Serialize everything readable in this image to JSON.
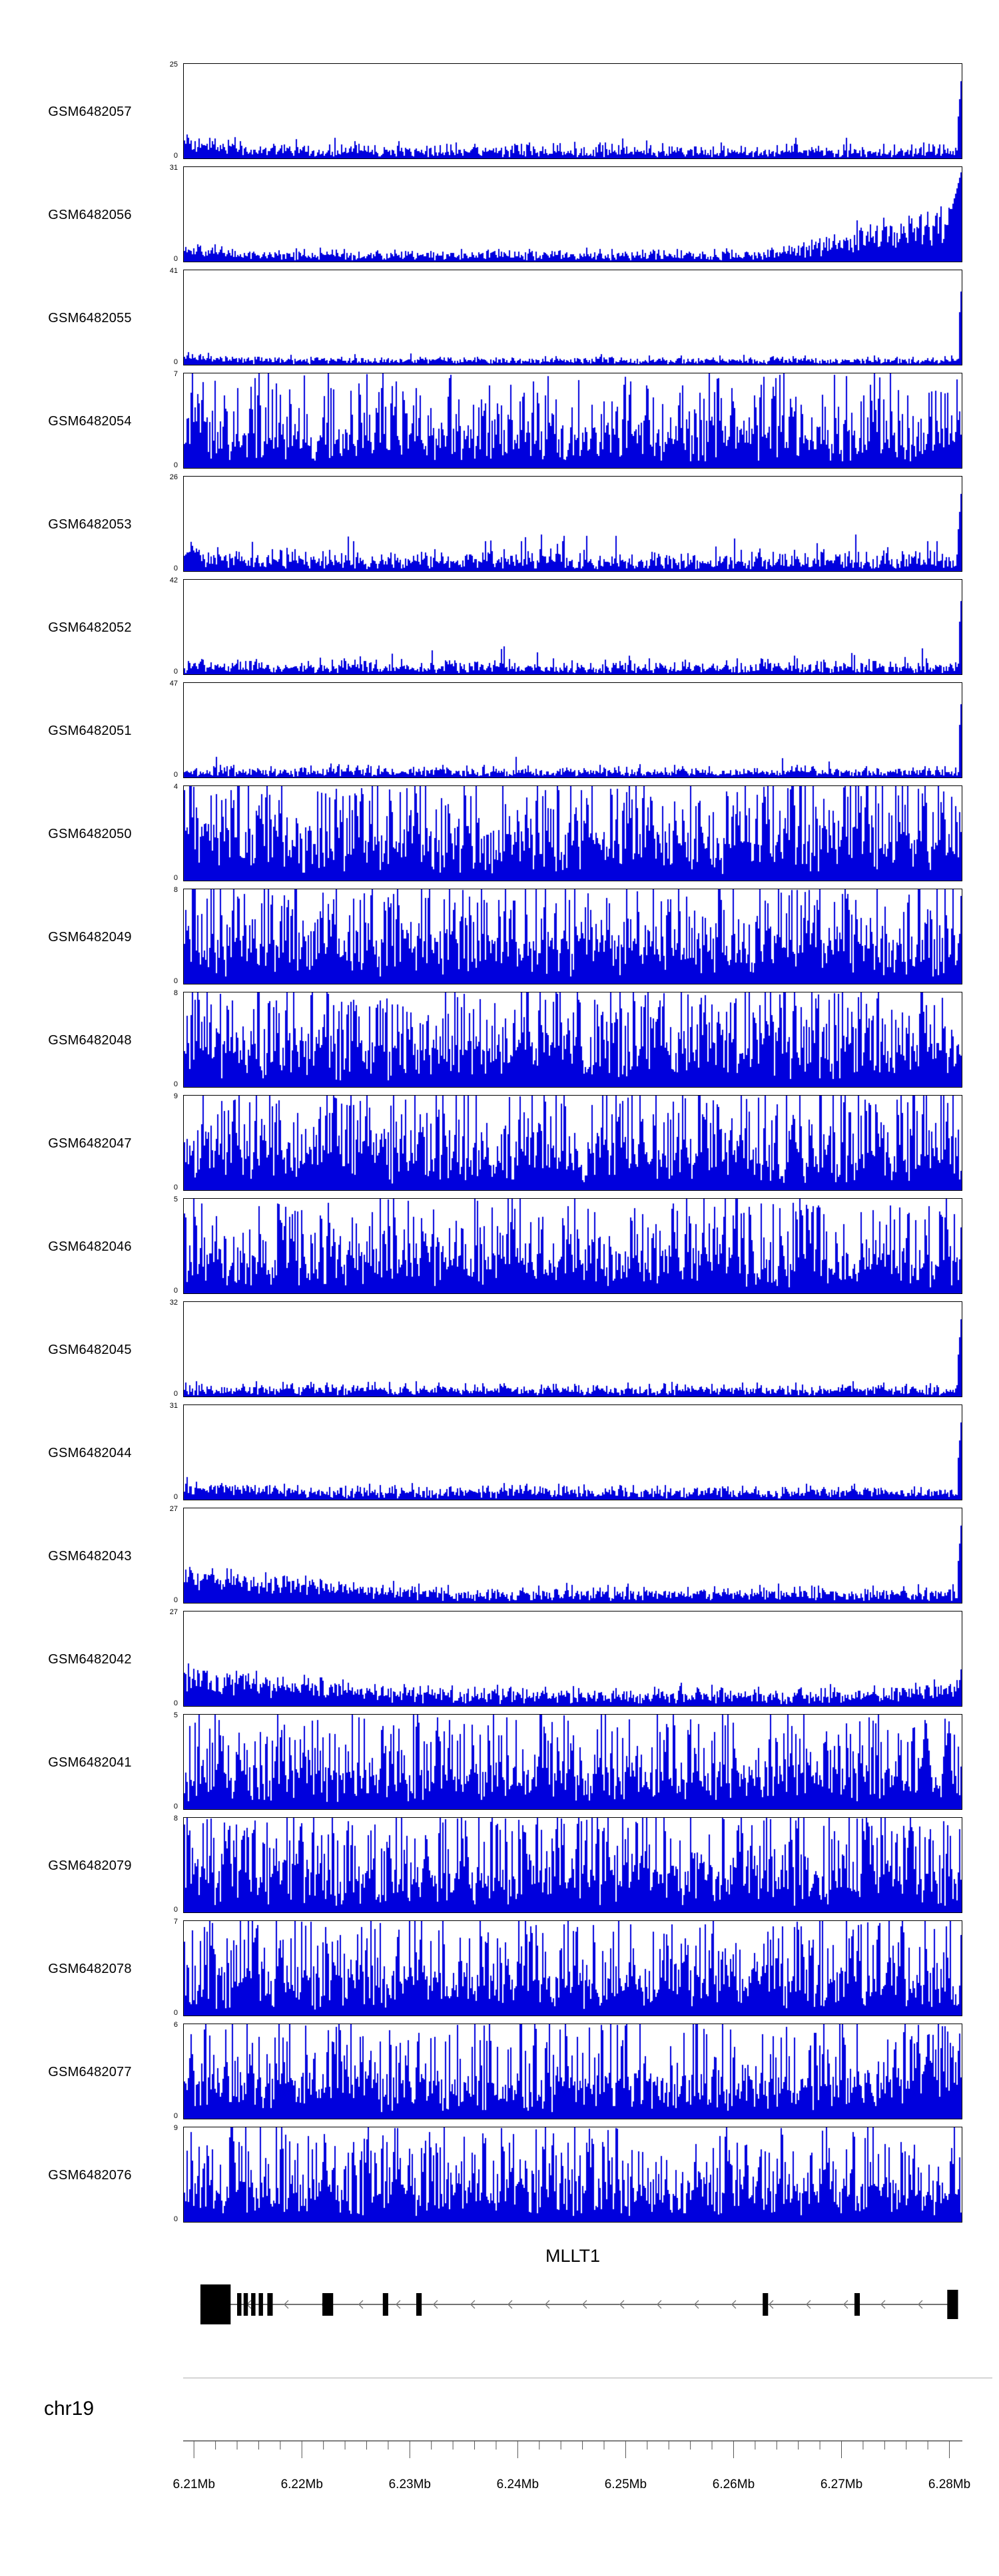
{
  "colors": {
    "coverage": "#0000dd",
    "exon": "#000000",
    "axis_line": "#333333",
    "tick": "#555555",
    "intron_line": "#444444",
    "arrow": "#777777"
  },
  "chart_data": {
    "type": "area",
    "description": "Genome-browser read-coverage (pileup) tracks for 21 GEO samples over the MLLT1 locus on chromosome 19",
    "x_axis": {
      "chromosome": "chr19",
      "range_mb": [
        6.209,
        6.2812
      ],
      "tick_positions_mb": [
        6.21,
        6.22,
        6.23,
        6.24,
        6.25,
        6.26,
        6.27,
        6.28
      ],
      "tick_labels": [
        "6.21Mb",
        "6.22Mb",
        "6.23Mb",
        "6.24Mb",
        "6.25Mb",
        "6.26Mb",
        "6.27Mb",
        "6.28Mb"
      ],
      "minor_tick_step_mb": 0.002
    },
    "tracks": [
      {
        "name": "GSM6482057",
        "ymin": 0,
        "ymax": 25,
        "pattern": "low flat coverage; sharp full-height spike at right edge",
        "profile": {
          "base": 0.05,
          "var": 0.06,
          "spikeProb": 0.03,
          "spikeMax": 0.22,
          "leftElev": 0.1,
          "leftWidth": 0.12,
          "rightSpike": 1,
          "rightSpikeWidth": 0.006
        }
      },
      {
        "name": "GSM6482056",
        "ymin": 0,
        "ymax": 31,
        "pattern": "low coverage ramping up over right quarter; tall spike at right edge",
        "profile": {
          "base": 0.05,
          "var": 0.05,
          "spikeProb": 0.02,
          "spikeMax": 0.15,
          "leftElev": 0.06,
          "leftWidth": 0.1,
          "rampStart": 0.75,
          "rampHeight": 0.5,
          "rightSpike": 1,
          "rightSpikeWidth": 0.02
        }
      },
      {
        "name": "GSM6482055",
        "ymin": 0,
        "ymax": 41,
        "pattern": "very low flat coverage; sharp spike at right edge",
        "profile": {
          "base": 0.035,
          "var": 0.03,
          "spikeProb": 0.015,
          "spikeMax": 0.12,
          "leftElev": 0.05,
          "leftWidth": 0.08,
          "rightSpike": 1,
          "rightSpikeWidth": 0.005
        }
      },
      {
        "name": "GSM6482054",
        "ymin": 0,
        "ymax": 7,
        "pattern": "dense spiky coverage across entire region",
        "profile": {
          "base": 0.22,
          "var": 0.5,
          "spikeProb": 0.1,
          "spikeMax": 1.0
        }
      },
      {
        "name": "GSM6482053",
        "ymin": 0,
        "ymax": 26,
        "pattern": "low coverage with scattered peaks; spike at right edge",
        "profile": {
          "base": 0.07,
          "var": 0.09,
          "spikeProb": 0.05,
          "spikeMax": 0.4,
          "leftElev": 0.08,
          "leftWidth": 0.1,
          "rightSpike": 1,
          "rightSpikeWidth": 0.006
        }
      },
      {
        "name": "GSM6482052",
        "ymin": 0,
        "ymax": 42,
        "pattern": "low flat coverage with occasional peaks; spike at right edge",
        "profile": {
          "base": 0.05,
          "var": 0.06,
          "spikeProb": 0.03,
          "spikeMax": 0.3,
          "rightSpike": 1,
          "rightSpikeWidth": 0.005
        }
      },
      {
        "name": "GSM6482051",
        "ymin": 0,
        "ymax": 47,
        "pattern": "low flat coverage; spike at right edge",
        "profile": {
          "base": 0.04,
          "var": 0.05,
          "spikeProb": 0.02,
          "spikeMax": 0.22,
          "rightSpike": 1,
          "rightSpikeWidth": 0.005
        }
      },
      {
        "name": "GSM6482050",
        "ymin": 0,
        "ymax": 4,
        "pattern": "dense tall spiky coverage across entire region",
        "profile": {
          "base": 0.28,
          "var": 0.55,
          "spikeProb": 0.15,
          "spikeMax": 1.0
        }
      },
      {
        "name": "GSM6482049",
        "ymin": 0,
        "ymax": 8,
        "pattern": "dense tall spiky coverage across entire region",
        "profile": {
          "base": 0.28,
          "var": 0.55,
          "spikeProb": 0.14,
          "spikeMax": 1.0
        }
      },
      {
        "name": "GSM6482048",
        "ymin": 0,
        "ymax": 8,
        "pattern": "dense tall spiky coverage across entire region",
        "profile": {
          "base": 0.28,
          "var": 0.55,
          "spikeProb": 0.13,
          "spikeMax": 1.0
        }
      },
      {
        "name": "GSM6482047",
        "ymin": 0,
        "ymax": 9,
        "pattern": "dense tall spiky coverage across entire region",
        "profile": {
          "base": 0.27,
          "var": 0.55,
          "spikeProb": 0.12,
          "spikeMax": 1.0
        }
      },
      {
        "name": "GSM6482046",
        "ymin": 0,
        "ymax": 5,
        "pattern": "dense spiky coverage across entire region",
        "profile": {
          "base": 0.24,
          "var": 0.5,
          "spikeProb": 0.1,
          "spikeMax": 0.95
        }
      },
      {
        "name": "GSM6482045",
        "ymin": 0,
        "ymax": 32,
        "pattern": "low flat coverage; spike at right edge",
        "profile": {
          "base": 0.05,
          "var": 0.05,
          "spikeProb": 0.02,
          "spikeMax": 0.18,
          "rightSpike": 1,
          "rightSpikeWidth": 0.006
        }
      },
      {
        "name": "GSM6482044",
        "ymin": 0,
        "ymax": 31,
        "pattern": "low coverage, slightly elevated at left; spike at right edge",
        "profile": {
          "base": 0.06,
          "var": 0.05,
          "spikeProb": 0.02,
          "spikeMax": 0.18,
          "leftElev": 0.08,
          "leftWidth": 0.15,
          "rightSpike": 1,
          "rightSpikeWidth": 0.006
        }
      },
      {
        "name": "GSM6482043",
        "ymin": 0,
        "ymax": 27,
        "pattern": "elevated left third decaying to low; spike at right edge",
        "profile": {
          "base": 0.07,
          "var": 0.06,
          "spikeProb": 0.03,
          "spikeMax": 0.2,
          "leftElev": 0.22,
          "leftWidth": 0.33,
          "rightSpike": 1,
          "rightSpikeWidth": 0.006
        }
      },
      {
        "name": "GSM6482042",
        "ymin": 0,
        "ymax": 27,
        "pattern": "elevated left third decaying to low; mild rise at right edge",
        "profile": {
          "base": 0.08,
          "var": 0.07,
          "spikeProb": 0.03,
          "spikeMax": 0.22,
          "leftElev": 0.25,
          "leftWidth": 0.3,
          "rampStart": 0.85,
          "rampHeight": 0.12,
          "rightSpike": 0.5,
          "rightSpikeWidth": 0.005
        }
      },
      {
        "name": "GSM6482041",
        "ymin": 0,
        "ymax": 5,
        "pattern": "dense spiky coverage across entire region",
        "profile": {
          "base": 0.24,
          "var": 0.5,
          "spikeProb": 0.1,
          "spikeMax": 0.95
        }
      },
      {
        "name": "GSM6482079",
        "ymin": 0,
        "ymax": 8,
        "pattern": "dense tall spiky coverage across entire region",
        "profile": {
          "base": 0.26,
          "var": 0.55,
          "spikeProb": 0.12,
          "spikeMax": 1.0
        }
      },
      {
        "name": "GSM6482078",
        "ymin": 0,
        "ymax": 7,
        "pattern": "dense spiky coverage across entire region",
        "profile": {
          "base": 0.25,
          "var": 0.52,
          "spikeProb": 0.11,
          "spikeMax": 1.0
        }
      },
      {
        "name": "GSM6482077",
        "ymin": 0,
        "ymax": 6,
        "pattern": "dense spiky coverage, taller near right edge",
        "profile": {
          "base": 0.24,
          "var": 0.5,
          "spikeProb": 0.1,
          "spikeMax": 0.95,
          "rampStart": 0.88,
          "rampHeight": 0.25
        }
      },
      {
        "name": "GSM6482076",
        "ymin": 0,
        "ymax": 9,
        "pattern": "dense spiky coverage with tall peaks left of center",
        "profile": {
          "base": 0.24,
          "var": 0.5,
          "spikeProb": 0.1,
          "spikeMax": 0.9,
          "extraPeaks": [
            {
              "t": 0.18,
              "h": 1.0
            },
            {
              "t": 0.27,
              "h": 0.85
            }
          ]
        }
      }
    ],
    "gene": {
      "name": "MLLT1",
      "chromosome": "chr19",
      "strand": "-",
      "line_range_mb": [
        6.2106,
        6.2808
      ],
      "exons_mb": [
        [
          6.2106,
          6.2134,
          "tall"
        ],
        [
          6.214,
          6.2144,
          "normal"
        ],
        [
          6.2146,
          6.215,
          "normal"
        ],
        [
          6.2153,
          6.2157,
          "normal"
        ],
        [
          6.216,
          6.2164,
          "normal"
        ],
        [
          6.2168,
          6.2173,
          "normal"
        ],
        [
          6.2219,
          6.2229,
          "normal"
        ],
        [
          6.2275,
          6.228,
          "normal"
        ],
        [
          6.2306,
          6.2311,
          "normal"
        ],
        [
          6.2627,
          6.2632,
          "normal"
        ],
        [
          6.2712,
          6.2717,
          "normal"
        ],
        [
          6.2798,
          6.2808,
          "med"
        ]
      ]
    }
  }
}
